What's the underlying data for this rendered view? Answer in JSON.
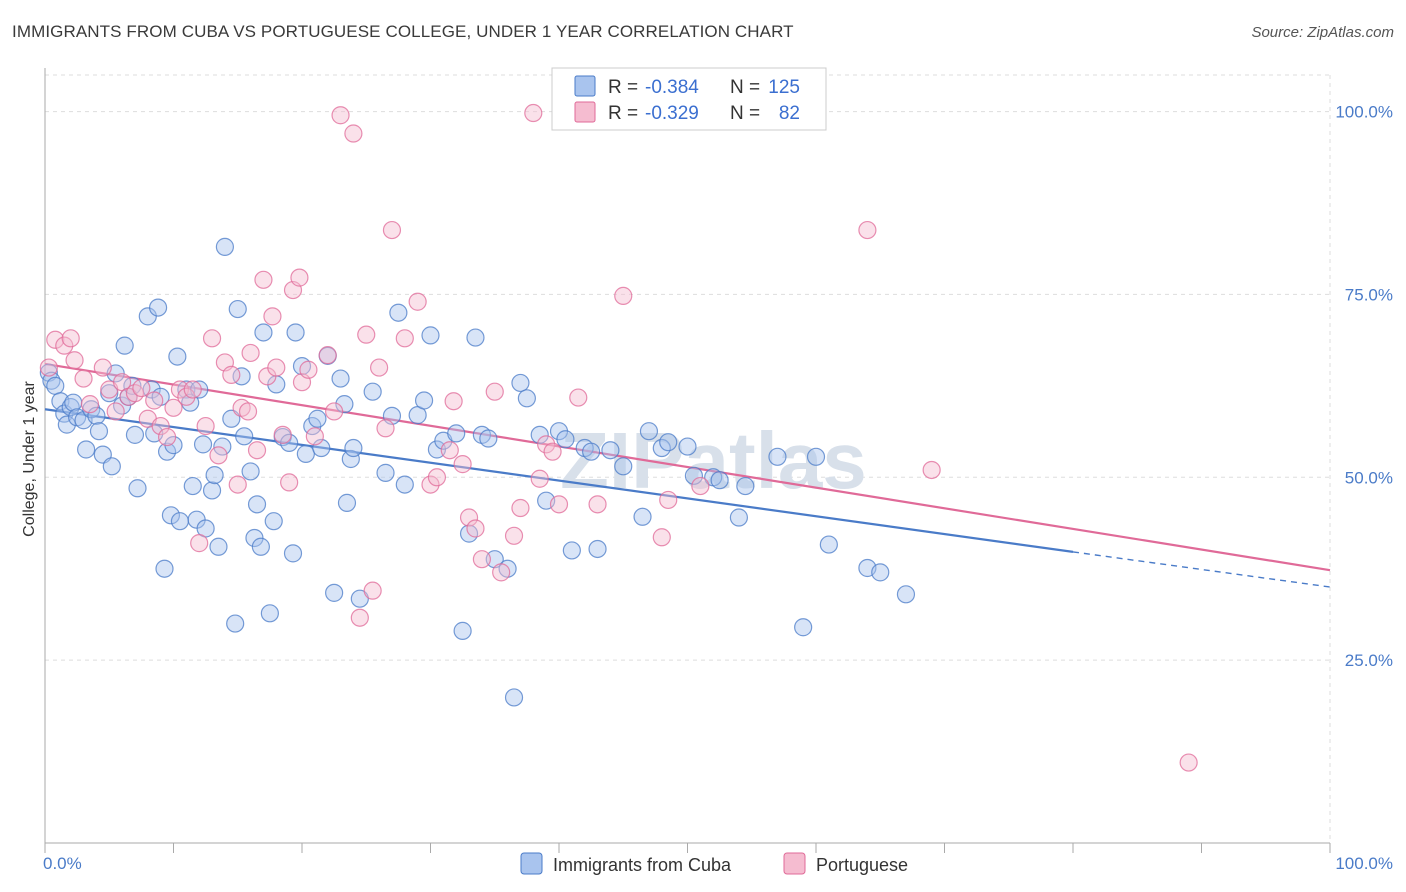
{
  "title": "IMMIGRANTS FROM CUBA VS PORTUGUESE COLLEGE, UNDER 1 YEAR CORRELATION CHART",
  "source": "Source: ZipAtlas.com",
  "watermark": "ZIPatlas",
  "colors": {
    "blue": "#4a7bc8",
    "blue_fill": "#a9c4ee",
    "pink": "#e06a98",
    "pink_fill": "#f5bcd0",
    "grid": "#dddddd"
  },
  "legend": {
    "rows": [
      {
        "r_label": "R = ",
        "r_value": "-0.384",
        "n_label": "N = ",
        "n_value": "125",
        "color": "blue"
      },
      {
        "r_label": "R = ",
        "r_value": "-0.329",
        "n_label": "N = ",
        "n_value": "82",
        "color": "pink"
      }
    ]
  },
  "chart_data": {
    "type": "scatter",
    "title": "IMMIGRANTS FROM CUBA VS PORTUGUESE COLLEGE, UNDER 1 YEAR CORRELATION CHART",
    "xlabel": "",
    "ylabel": "College, Under 1 year",
    "xlim": [
      0,
      100
    ],
    "ylim": [
      0,
      105
    ],
    "x_tick_labels": [
      "0.0%",
      "100.0%"
    ],
    "y_ticks": [
      25,
      50,
      75,
      100
    ],
    "y_tick_labels": [
      "25.0%",
      "50.0%",
      "75.0%",
      "100.0%"
    ],
    "grid": true,
    "legend_placement": "top-center",
    "series": [
      {
        "name": "Immigrants from Cuba",
        "color": "blue",
        "trend": {
          "x": [
            0,
            80,
            100
          ],
          "y": [
            59.3,
            39.8,
            35.0
          ],
          "solid_until": 80
        },
        "points": [
          [
            0.3,
            64.3
          ],
          [
            0.5,
            63.2
          ],
          [
            0.8,
            62.5
          ],
          [
            1.2,
            60.4
          ],
          [
            1.5,
            58.7
          ],
          [
            1.7,
            57.2
          ],
          [
            2.0,
            59.6
          ],
          [
            2.2,
            60.2
          ],
          [
            2.5,
            58.2
          ],
          [
            3.0,
            57.8
          ],
          [
            3.2,
            53.8
          ],
          [
            3.6,
            59.3
          ],
          [
            4.0,
            58.4
          ],
          [
            4.2,
            56.3
          ],
          [
            4.5,
            53.1
          ],
          [
            5.0,
            61.5
          ],
          [
            5.2,
            51.5
          ],
          [
            5.5,
            64.2
          ],
          [
            6.0,
            59.8
          ],
          [
            6.2,
            68.0
          ],
          [
            6.5,
            61.0
          ],
          [
            6.8,
            62.5
          ],
          [
            7.0,
            55.8
          ],
          [
            7.2,
            48.5
          ],
          [
            8.0,
            72.0
          ],
          [
            8.3,
            62.0
          ],
          [
            8.5,
            56.0
          ],
          [
            8.8,
            73.2
          ],
          [
            9.0,
            61.0
          ],
          [
            9.3,
            37.5
          ],
          [
            9.5,
            53.5
          ],
          [
            9.8,
            44.8
          ],
          [
            10.0,
            54.4
          ],
          [
            10.3,
            66.5
          ],
          [
            10.5,
            44.0
          ],
          [
            11.0,
            62.0
          ],
          [
            11.3,
            60.2
          ],
          [
            11.5,
            48.8
          ],
          [
            11.8,
            44.2
          ],
          [
            12.0,
            62.0
          ],
          [
            12.3,
            54.5
          ],
          [
            12.5,
            43.0
          ],
          [
            13.0,
            48.2
          ],
          [
            13.2,
            50.3
          ],
          [
            13.5,
            40.5
          ],
          [
            13.8,
            54.2
          ],
          [
            14.0,
            81.5
          ],
          [
            14.5,
            58.0
          ],
          [
            14.8,
            30.0
          ],
          [
            15.0,
            73.0
          ],
          [
            15.3,
            63.8
          ],
          [
            15.5,
            55.6
          ],
          [
            16.0,
            50.8
          ],
          [
            16.3,
            41.7
          ],
          [
            16.5,
            46.3
          ],
          [
            16.8,
            40.5
          ],
          [
            17.0,
            69.8
          ],
          [
            17.5,
            31.4
          ],
          [
            17.8,
            44.0
          ],
          [
            18.0,
            62.7
          ],
          [
            18.5,
            55.5
          ],
          [
            19.0,
            54.7
          ],
          [
            19.3,
            39.6
          ],
          [
            19.5,
            69.8
          ],
          [
            20.0,
            65.2
          ],
          [
            20.3,
            53.2
          ],
          [
            20.8,
            57.0
          ],
          [
            21.2,
            58.0
          ],
          [
            21.5,
            54.0
          ],
          [
            22.0,
            66.6
          ],
          [
            22.5,
            34.2
          ],
          [
            23.0,
            63.5
          ],
          [
            23.3,
            60.0
          ],
          [
            23.5,
            46.5
          ],
          [
            23.8,
            52.5
          ],
          [
            24.0,
            54.0
          ],
          [
            24.5,
            33.4
          ],
          [
            25.5,
            61.7
          ],
          [
            26.5,
            50.6
          ],
          [
            27.0,
            58.4
          ],
          [
            27.5,
            72.5
          ],
          [
            28.0,
            49.0
          ],
          [
            29.0,
            58.5
          ],
          [
            29.5,
            60.5
          ],
          [
            30.0,
            69.4
          ],
          [
            30.5,
            53.8
          ],
          [
            31.0,
            55.0
          ],
          [
            32.0,
            56.0
          ],
          [
            32.5,
            29.0
          ],
          [
            33.0,
            42.3
          ],
          [
            33.5,
            69.1
          ],
          [
            34.0,
            55.8
          ],
          [
            34.5,
            55.3
          ],
          [
            35.0,
            38.8
          ],
          [
            36.0,
            37.5
          ],
          [
            37.0,
            62.9
          ],
          [
            37.5,
            60.8
          ],
          [
            38.5,
            55.8
          ],
          [
            39.0,
            46.8
          ],
          [
            40.0,
            56.3
          ],
          [
            40.5,
            55.2
          ],
          [
            41.0,
            40.0
          ],
          [
            42.0,
            54.0
          ],
          [
            42.5,
            53.5
          ],
          [
            43.0,
            40.2
          ],
          [
            44.0,
            53.7
          ],
          [
            45.0,
            51.5
          ],
          [
            46.5,
            44.6
          ],
          [
            47.0,
            56.3
          ],
          [
            48.0,
            54.0
          ],
          [
            48.5,
            54.8
          ],
          [
            50.0,
            54.2
          ],
          [
            50.5,
            50.2
          ],
          [
            52.0,
            50.0
          ],
          [
            52.5,
            49.6
          ],
          [
            54.0,
            44.5
          ],
          [
            54.5,
            48.8
          ],
          [
            57.0,
            52.8
          ],
          [
            59.0,
            29.5
          ],
          [
            60.0,
            52.8
          ],
          [
            61.0,
            40.8
          ],
          [
            64.0,
            37.6
          ],
          [
            65.0,
            37.0
          ],
          [
            67.0,
            34.0
          ],
          [
            36.5,
            19.9
          ]
        ]
      },
      {
        "name": "Portuguese",
        "color": "pink",
        "trend": {
          "x": [
            0,
            100
          ],
          "y": [
            65.5,
            37.3
          ]
        },
        "points": [
          [
            0.3,
            65.0
          ],
          [
            0.8,
            68.8
          ],
          [
            1.5,
            68.0
          ],
          [
            2.0,
            69.0
          ],
          [
            2.3,
            66.0
          ],
          [
            3.0,
            63.5
          ],
          [
            3.5,
            60.0
          ],
          [
            4.5,
            65.0
          ],
          [
            5.0,
            62.0
          ],
          [
            5.5,
            59.0
          ],
          [
            6.0,
            63.0
          ],
          [
            6.5,
            61.0
          ],
          [
            7.0,
            61.5
          ],
          [
            7.5,
            62.2
          ],
          [
            8.0,
            58.0
          ],
          [
            8.5,
            60.5
          ],
          [
            9.0,
            57.0
          ],
          [
            9.5,
            55.5
          ],
          [
            10.0,
            59.5
          ],
          [
            10.5,
            62.0
          ],
          [
            11.0,
            61.0
          ],
          [
            11.5,
            62.0
          ],
          [
            12.0,
            41.0
          ],
          [
            12.5,
            57.0
          ],
          [
            13.0,
            69.0
          ],
          [
            13.5,
            53.0
          ],
          [
            14.0,
            65.7
          ],
          [
            14.5,
            64.0
          ],
          [
            15.0,
            49.0
          ],
          [
            15.3,
            59.5
          ],
          [
            15.8,
            59.0
          ],
          [
            16.0,
            67.0
          ],
          [
            16.5,
            53.7
          ],
          [
            17.0,
            77.0
          ],
          [
            17.3,
            63.8
          ],
          [
            17.7,
            72.0
          ],
          [
            18.0,
            65.0
          ],
          [
            18.5,
            55.8
          ],
          [
            19.0,
            49.3
          ],
          [
            19.3,
            75.6
          ],
          [
            19.8,
            77.3
          ],
          [
            20.0,
            63.0
          ],
          [
            20.5,
            64.7
          ],
          [
            21.0,
            55.6
          ],
          [
            22.0,
            66.7
          ],
          [
            22.5,
            59.0
          ],
          [
            23.0,
            99.5
          ],
          [
            24.0,
            97.0
          ],
          [
            24.5,
            30.8
          ],
          [
            25.0,
            69.5
          ],
          [
            25.5,
            34.5
          ],
          [
            26.0,
            65.0
          ],
          [
            26.5,
            56.7
          ],
          [
            27.0,
            83.8
          ],
          [
            28.0,
            69.0
          ],
          [
            29.0,
            74.0
          ],
          [
            30.0,
            49.0
          ],
          [
            30.5,
            50.0
          ],
          [
            31.5,
            53.7
          ],
          [
            31.8,
            60.4
          ],
          [
            32.5,
            51.8
          ],
          [
            33.0,
            44.5
          ],
          [
            33.5,
            43.0
          ],
          [
            34.0,
            38.8
          ],
          [
            35.0,
            61.7
          ],
          [
            35.5,
            37.0
          ],
          [
            36.5,
            42.0
          ],
          [
            37.0,
            45.8
          ],
          [
            38.0,
            99.8
          ],
          [
            38.5,
            49.8
          ],
          [
            39.0,
            54.5
          ],
          [
            39.5,
            53.5
          ],
          [
            40.0,
            46.3
          ],
          [
            41.5,
            60.9
          ],
          [
            43.0,
            46.3
          ],
          [
            45.0,
            74.8
          ],
          [
            48.0,
            41.8
          ],
          [
            48.5,
            46.9
          ],
          [
            51.0,
            48.8
          ],
          [
            64.0,
            83.8
          ],
          [
            69.0,
            51.0
          ],
          [
            89.0,
            11.0
          ]
        ]
      }
    ]
  },
  "bottom_legend": [
    {
      "label": "Immigrants from Cuba",
      "color": "blue"
    },
    {
      "label": "Portuguese",
      "color": "pink"
    }
  ]
}
